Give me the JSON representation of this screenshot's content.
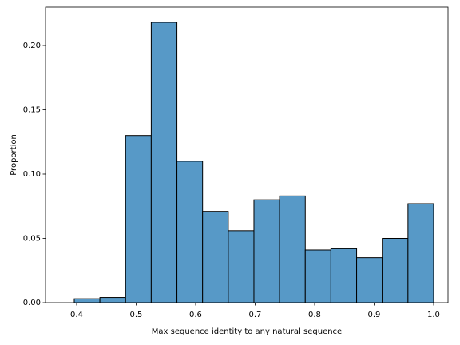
{
  "chart_data": {
    "type": "histogram",
    "xlabel": "Max sequence identity to any natural sequence",
    "ylabel": "Proportion",
    "bins": [
      0.396,
      0.4391,
      0.4823,
      0.5254,
      0.5686,
      0.6117,
      0.6549,
      0.698,
      0.7411,
      0.7843,
      0.8274,
      0.8706,
      0.9137,
      0.9569,
      1.0
    ],
    "values": [
      0.003,
      0.004,
      0.13,
      0.218,
      0.11,
      0.071,
      0.056,
      0.08,
      0.083,
      0.041,
      0.042,
      0.035,
      0.05,
      0.077
    ],
    "color": "#5799c7",
    "xlim": [
      0.3477,
      1.0242
    ],
    "ylim": [
      0,
      0.2298
    ],
    "xticks": [
      0.4,
      0.5,
      0.6,
      0.7,
      0.8,
      0.9,
      {
        "value": 1.0,
        "label": "1.0"
      }
    ],
    "yticks": [
      {
        "value": 0,
        "label": "0.00"
      },
      {
        "value": 0.05,
        "label": "0.05"
      },
      {
        "value": 0.1,
        "label": "0.10"
      },
      {
        "value": 0.15,
        "label": "0.15"
      },
      {
        "value": 0.2,
        "label": "0.20"
      }
    ]
  }
}
